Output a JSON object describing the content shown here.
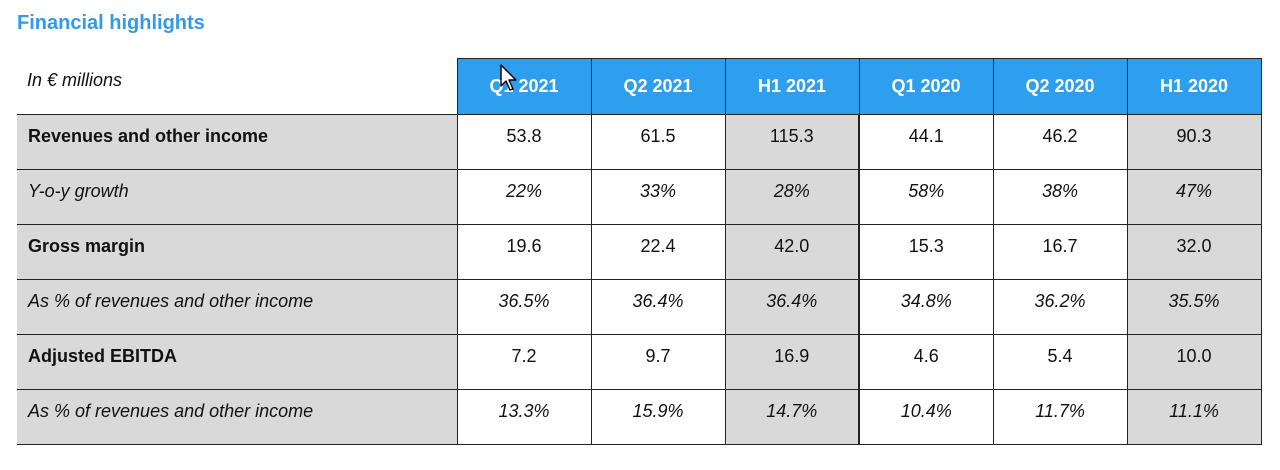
{
  "title": "Financial highlights",
  "table": {
    "unit_label": "In € millions",
    "columns": [
      "Q1 2021",
      "Q2 2021",
      "H1 2021",
      "Q1 2020",
      "Q2 2020",
      "H1 2020"
    ],
    "rows": [
      {
        "label": "Revenues and other income",
        "style": "bold",
        "values": [
          "53.8",
          "61.5",
          "115.3",
          "44.1",
          "46.2",
          "90.3"
        ]
      },
      {
        "label": "Y-o-y growth",
        "style": "italic",
        "values": [
          "22%",
          "33%",
          "28%",
          "58%",
          "38%",
          "47%"
        ]
      },
      {
        "label": "Gross margin",
        "style": "bold",
        "values": [
          "19.6",
          "22.4",
          "42.0",
          "15.3",
          "16.7",
          "32.0"
        ]
      },
      {
        "label": "As % of revenues and other income",
        "style": "italic",
        "values": [
          "36.5%",
          "36.4%",
          "36.4%",
          "34.8%",
          "36.2%",
          "35.5%"
        ]
      },
      {
        "label": "Adjusted EBITDA",
        "style": "bold",
        "values": [
          "7.2",
          "9.7",
          "16.9",
          "4.6",
          "5.4",
          "10.0"
        ]
      },
      {
        "label": "As % of revenues and other income",
        "style": "italic",
        "values": [
          "13.3%",
          "15.9%",
          "14.7%",
          "10.4%",
          "11.7%",
          "11.1%"
        ]
      }
    ]
  },
  "colors": {
    "title": "#2f9bea",
    "header_fill": "#2e9eef",
    "label_fill": "#d9d9d9"
  },
  "icons": {
    "cursor": "mouse-pointer-icon"
  }
}
